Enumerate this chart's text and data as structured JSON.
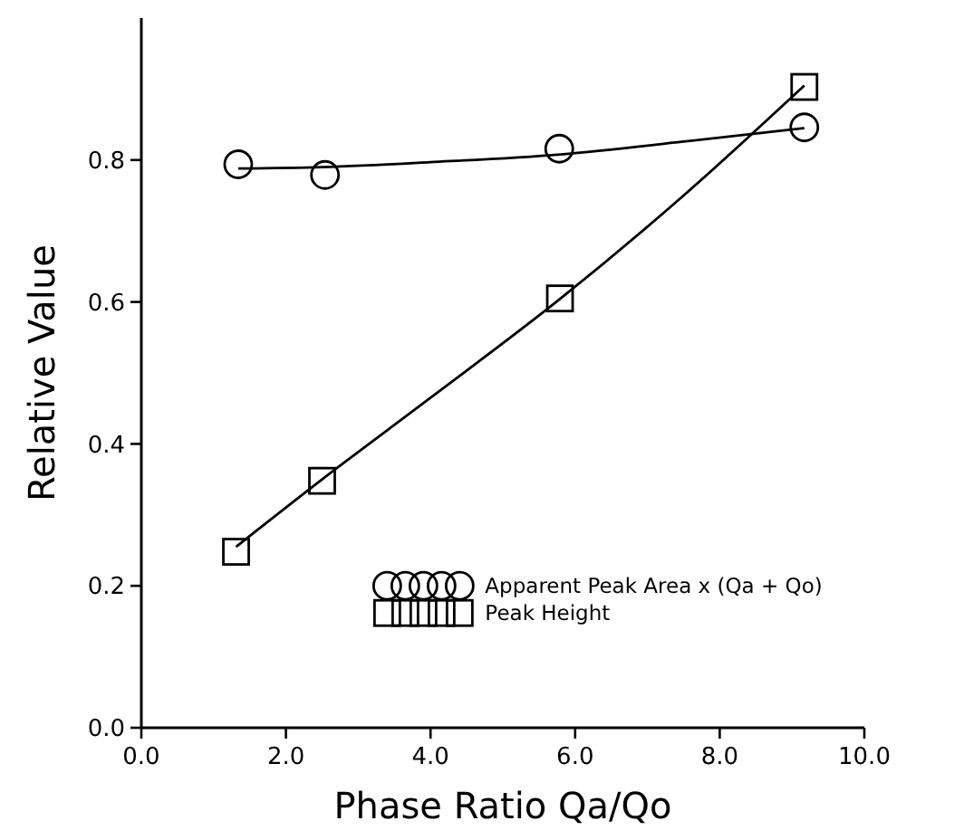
{
  "chart_data": {
    "type": "scatter",
    "xlabel": "Phase Ratio Qa/Qo",
    "ylabel": "Relative Value",
    "xlim": [
      0,
      10
    ],
    "xticks": [
      {
        "value": 0,
        "label": "0.0"
      },
      {
        "value": 2,
        "label": "2.0"
      },
      {
        "value": 4,
        "label": "4.0"
      },
      {
        "value": 6,
        "label": "6.0"
      },
      {
        "value": 8,
        "label": "8.0"
      },
      {
        "value": 10,
        "label": "10.0"
      }
    ],
    "ylim": [
      0,
      1
    ],
    "yticks": [
      {
        "value": 0,
        "label": "0.0"
      },
      {
        "value": 0.2,
        "label": "0.2"
      },
      {
        "value": 0.4,
        "label": "0.4"
      },
      {
        "value": 0.6,
        "label": "0.6"
      },
      {
        "value": 0.8,
        "label": "0.8"
      }
    ],
    "grid": false,
    "legend": "bottom right",
    "series": [
      {
        "name": "Apparent Peak Area x (Qa + Qo)",
        "marker": "circle",
        "color": "#000000",
        "x": [
          1.34,
          2.54,
          5.78,
          9.17
        ],
        "values": [
          0.794,
          0.779,
          0.816,
          0.846
        ]
      },
      {
        "name": "Peak Height",
        "marker": "square",
        "color": "#000000",
        "x": [
          1.31,
          2.5,
          5.79,
          9.17
        ],
        "values": [
          0.248,
          0.348,
          0.605,
          0.903
        ]
      },
      {
        "type": "line",
        "marker": "none",
        "line_style": "solid",
        "color": "#000000",
        "x": [
          1.34,
          2.5,
          4.0,
          5.8,
          7.5,
          9.17
        ],
        "values": [
          0.788,
          0.79,
          0.797,
          0.808,
          0.826,
          0.845
        ]
      },
      {
        "type": "line",
        "marker": "none",
        "line_style": "solid",
        "color": "#000000",
        "x": [
          1.31,
          2.5,
          4.0,
          5.8,
          7.5,
          9.17
        ],
        "values": [
          0.255,
          0.35,
          0.465,
          0.605,
          0.75,
          0.905
        ]
      }
    ]
  }
}
